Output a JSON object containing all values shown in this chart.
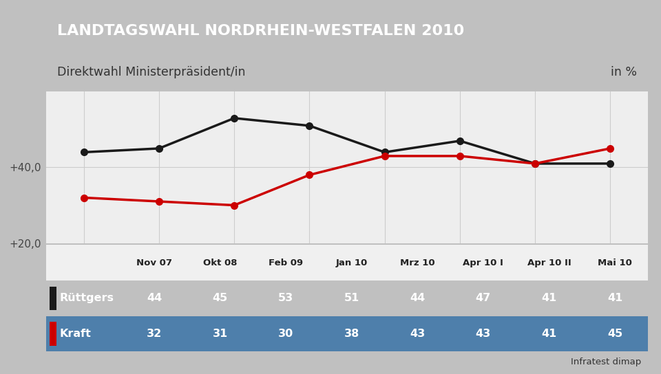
{
  "title": "LANDTAGSWAHL NORDRHEIN-WESTFALEN 2010",
  "subtitle": "Direktwahl Ministerpräsident/in",
  "subtitle_right": "in %",
  "categories": [
    "Nov 07",
    "Okt 08",
    "Feb 09",
    "Jan 10",
    "Mrz 10",
    "Apr 10 I",
    "Apr 10 II",
    "Mai 10"
  ],
  "ruettgers": [
    44,
    45,
    53,
    51,
    44,
    47,
    41,
    41
  ],
  "kraft": [
    32,
    31,
    30,
    38,
    43,
    43,
    41,
    45
  ],
  "ruettgers_color": "#1a1a1a",
  "kraft_color": "#cc0000",
  "title_bg": "#1a3a7a",
  "subtitle_bg": "#ffffff",
  "table_header_bg": "#f0f0f0",
  "data_row_bg": "#4e7fab",
  "bg_color": "#c0c0c0",
  "chart_bg": "#eeeeee",
  "ylim_min": 20,
  "ylim_max": 60,
  "yticks": [
    20,
    40
  ],
  "ytick_labels": [
    "+20,0",
    "+40,0"
  ],
  "source": "Infratest dimap",
  "line_width": 2.5,
  "marker_size": 7
}
